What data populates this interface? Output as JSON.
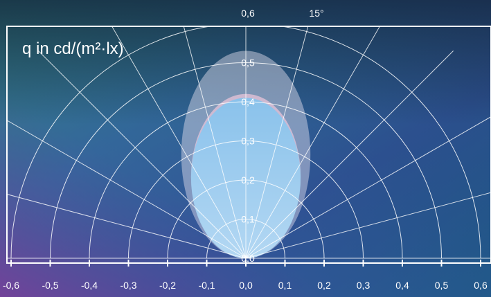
{
  "chart_data": {
    "type": "polar",
    "title": "q in cd/(m²·lx)",
    "radial_ticks": [
      "0,0",
      "0,1",
      "0,2",
      "0,3",
      "0,4",
      "0,5",
      "0,6"
    ],
    "radial_values": [
      0.0,
      0.1,
      0.2,
      0.3,
      0.4,
      0.5,
      0.6
    ],
    "angle_label": "15°",
    "angle_step_deg": 15,
    "x_ticks": [
      "-0,6",
      "-0,5",
      "-0,4",
      "-0,3",
      "-0,2",
      "-0,1",
      "0,0",
      "0,1",
      "0,2",
      "0,3",
      "0,4",
      "0,5",
      "0,6"
    ],
    "x_values": [
      -0.6,
      -0.5,
      -0.4,
      -0.3,
      -0.2,
      -0.1,
      0.0,
      0.1,
      0.2,
      0.3,
      0.4,
      0.5,
      0.6
    ],
    "rlim": [
      0,
      0.6
    ],
    "xlim": [
      -0.6,
      0.6
    ],
    "grid": true,
    "series": [
      {
        "values": {
          "max": 0.53,
          "half_width": 0.165
        },
        "color": "#e6e2f0"
      },
      {
        "values": {
          "max": 0.42,
          "half_width": 0.14
        },
        "color": "#f0c8dc"
      },
      {
        "values": {
          "max": 0.41,
          "half_width": 0.14
        },
        "color": "#7ec3f0"
      }
    ],
    "colors": {
      "grid": "#ffffff",
      "frame": "#ffffff"
    }
  }
}
